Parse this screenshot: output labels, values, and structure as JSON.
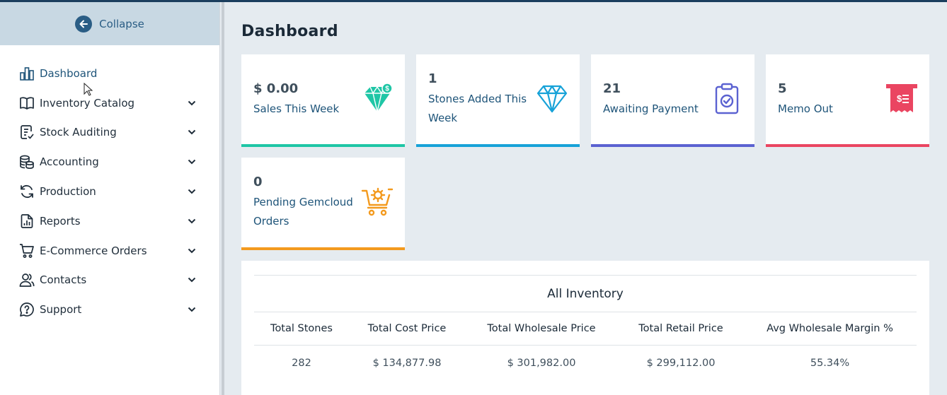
{
  "sidebar": {
    "collapse_label": "Collapse",
    "items": [
      {
        "label": "Dashboard",
        "icon": "bar-chart-icon",
        "active": true
      },
      {
        "label": "Inventory Catalog",
        "icon": "book-icon"
      },
      {
        "label": "Stock Auditing",
        "icon": "checklist-icon"
      },
      {
        "label": "Accounting",
        "icon": "coins-icon"
      },
      {
        "label": "Production",
        "icon": "refresh-icon"
      },
      {
        "label": "Reports",
        "icon": "report-icon"
      },
      {
        "label": "E-Commerce Orders",
        "icon": "cart-icon"
      },
      {
        "label": "Contacts",
        "icon": "users-icon"
      },
      {
        "label": "Support",
        "icon": "help-bubble-icon"
      }
    ]
  },
  "page": {
    "title": "Dashboard"
  },
  "cards": [
    {
      "value": "$ 0.00",
      "label": "Sales This Week",
      "icon": "diamond-dollar-icon",
      "color": "#1fc6a6"
    },
    {
      "value": "1",
      "label": "Stones Added This Week",
      "icon": "diamond-icon",
      "color": "#17a2d8"
    },
    {
      "value": "21",
      "label": "Awaiting Payment",
      "icon": "clipboard-check-icon",
      "color": "#5b62d1"
    },
    {
      "value": "5",
      "label": "Memo Out",
      "icon": "receipt-icon",
      "color": "#ea4561"
    },
    {
      "value": "0",
      "label": "Pending Gemcloud Orders",
      "icon": "cart-gear-icon",
      "color": "#f39a1e"
    }
  ],
  "inventory": {
    "title": "All Inventory",
    "headers": [
      "Total Stones",
      "Total Cost Price",
      "Total Wholesale Price",
      "Total Retail Price",
      "Avg Wholesale Margin %"
    ],
    "values": [
      "282",
      "$ 134,877.98",
      "$ 301,982.00",
      "$ 299,112.00",
      "55.34%"
    ]
  }
}
